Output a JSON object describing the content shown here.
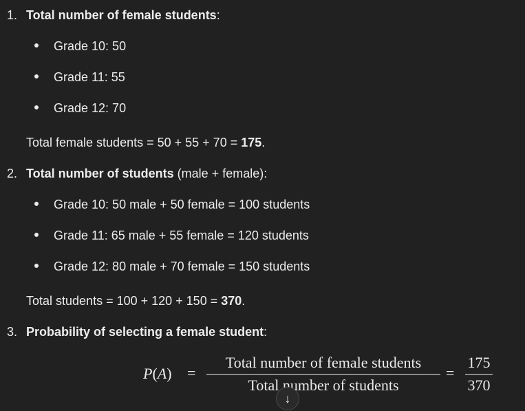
{
  "steps": [
    {
      "number": "1.",
      "title": "Total number of female students",
      "suffix": ":",
      "bullets": [
        "Grade 10: 50",
        "Grade 11: 55",
        "Grade 12: 70"
      ],
      "total_prefix": "Total female students = 50 + 55 + 70 = ",
      "total_value": "175",
      "total_suffix": "."
    },
    {
      "number": "2.",
      "title": "Total number of students",
      "suffix": " (male + female):",
      "bullets": [
        "Grade 10: 50 male + 50 female = 100 students",
        "Grade 11: 65 male + 55 female = 120 students",
        "Grade 12: 80 male + 70 female = 150 students"
      ],
      "total_prefix": "Total students = 100 + 120 + 150 = ",
      "total_value": "370",
      "total_suffix": "."
    },
    {
      "number": "3.",
      "title": "Probability of selecting a female student",
      "suffix": ":"
    }
  ],
  "formula": {
    "lhs_var": "P",
    "lhs_open": "(",
    "lhs_arg": "A",
    "lhs_close": ")",
    "eq": "=",
    "frac1_num": "Total number of female students",
    "frac1_den": "Total number of students",
    "frac2_num": "175",
    "frac2_den": "370"
  },
  "scroll_button": {
    "icon": "arrow-down-icon",
    "glyph": "↓"
  }
}
